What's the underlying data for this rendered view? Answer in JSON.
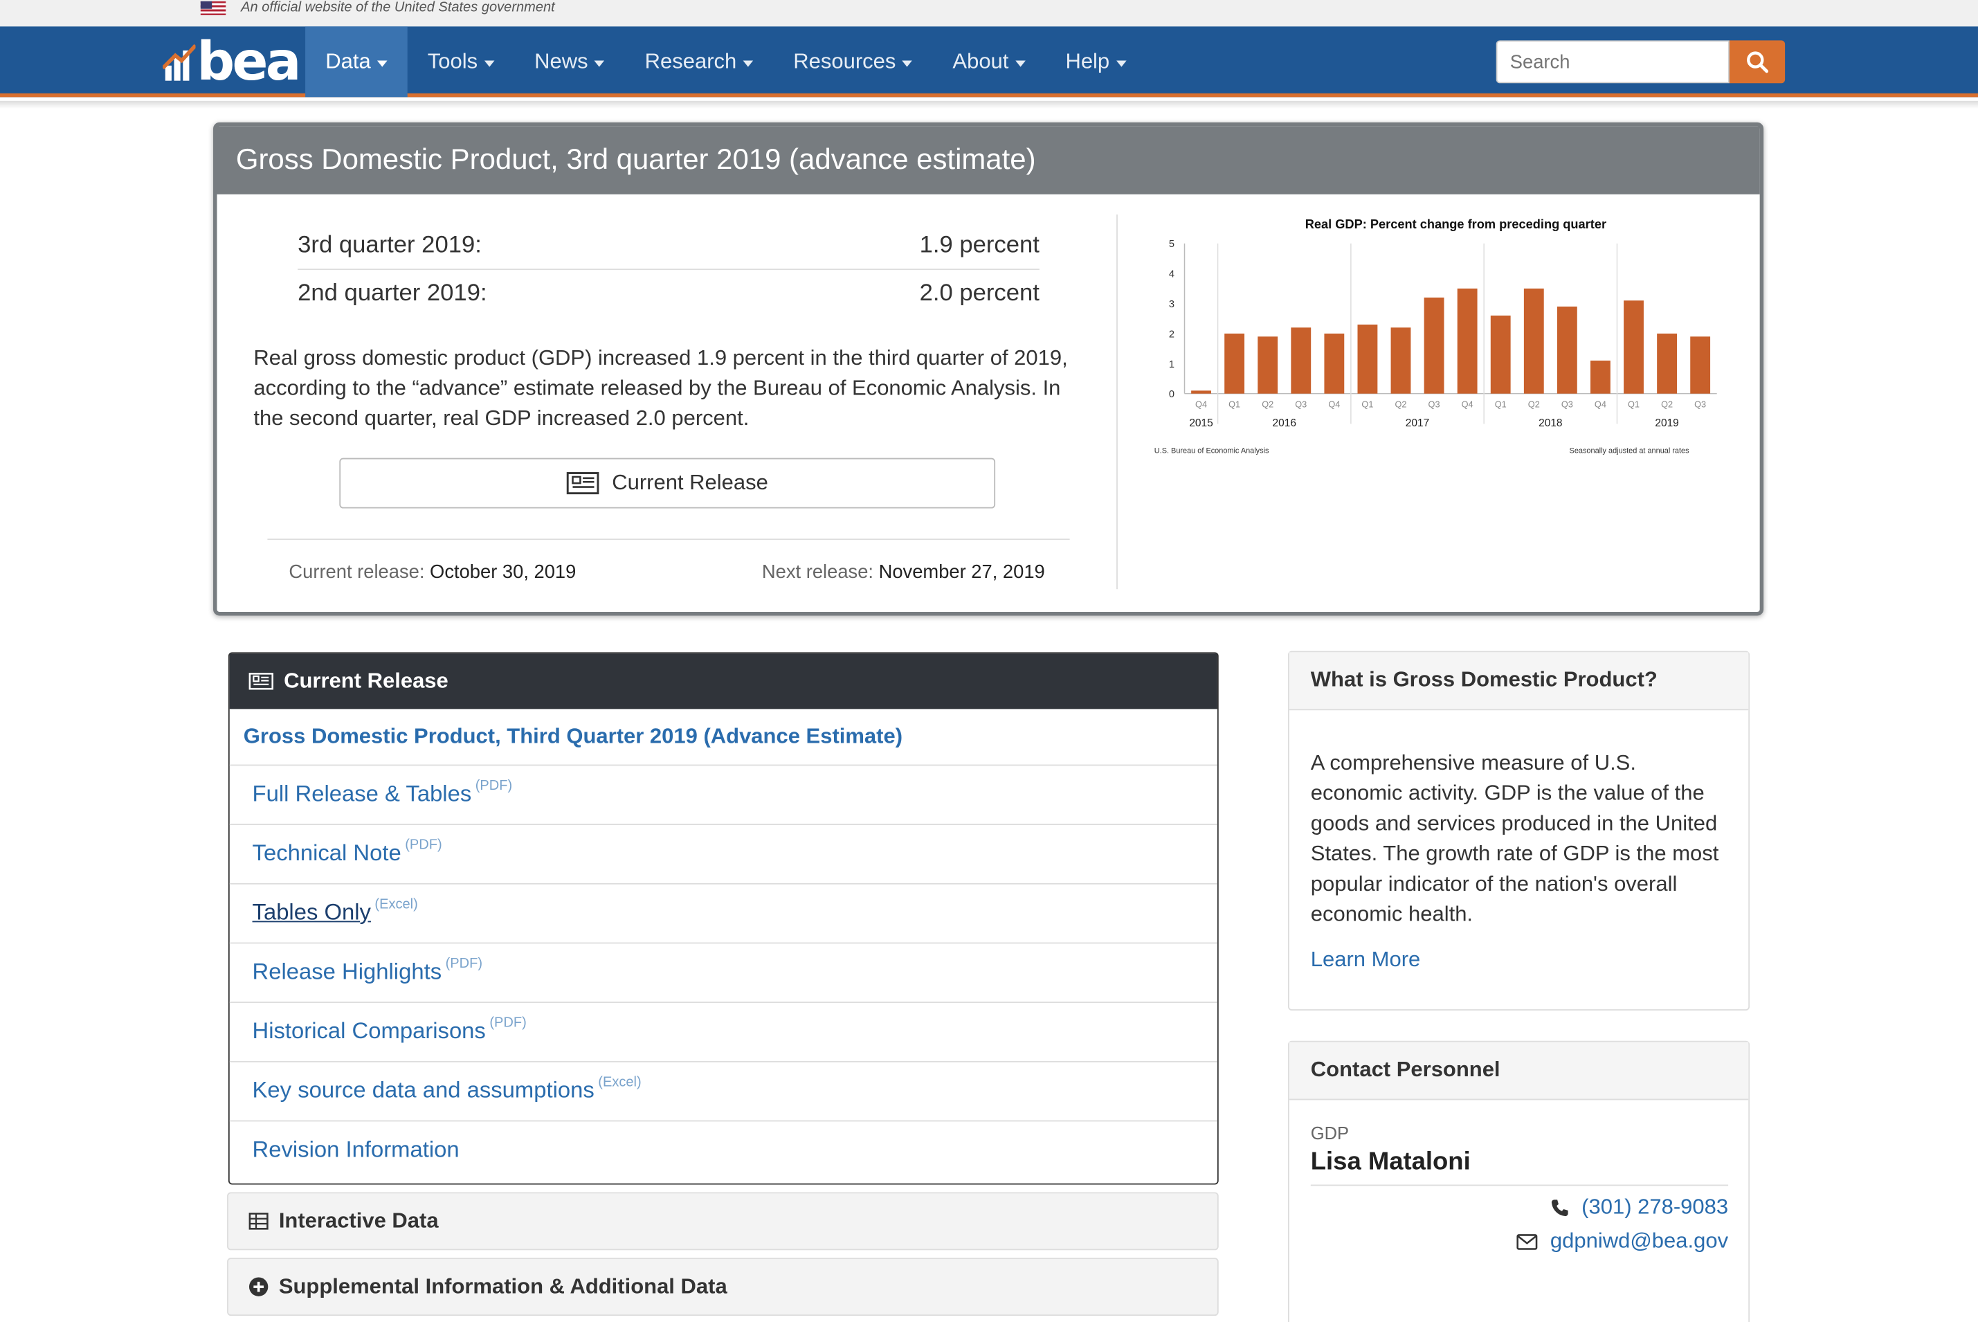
{
  "gov_banner": {
    "text": "An official website of the United States government"
  },
  "nav": {
    "logo_text": "bea",
    "items": [
      "Data",
      "Tools",
      "News",
      "Research",
      "Resources",
      "About",
      "Help"
    ],
    "search_placeholder": "Search"
  },
  "hero": {
    "title": "Gross Domestic Product, 3rd quarter 2019 (advance estimate)",
    "stats": [
      {
        "label": "3rd quarter 2019:",
        "value": "1.9 percent"
      },
      {
        "label": "2nd quarter 2019:",
        "value": "2.0 percent"
      }
    ],
    "description": "Real gross domestic product (GDP) increased 1.9 percent in the third quarter of 2019, according to the “advance” estimate released by the Bureau of Economic Analysis. In the second quarter, real GDP increased 2.0 percent.",
    "button_label": "Current Release",
    "current_release_label": "Current release:",
    "current_release_date": "October 30, 2019",
    "next_release_label": "Next release:",
    "next_release_date": "November 27, 2019"
  },
  "chart_data": {
    "type": "bar",
    "title": "Real GDP:  Percent change from preceding quarter",
    "categories": [
      "Q4",
      "Q1",
      "Q2",
      "Q3",
      "Q4",
      "Q1",
      "Q2",
      "Q3",
      "Q4",
      "Q1",
      "Q2",
      "Q3",
      "Q4",
      "Q1",
      "Q2",
      "Q3"
    ],
    "year_labels": [
      "2015",
      "2016",
      "2017",
      "2018",
      "2019"
    ],
    "values": [
      0.1,
      2.0,
      1.9,
      2.2,
      2.0,
      2.3,
      2.2,
      3.2,
      3.5,
      2.6,
      3.5,
      2.9,
      1.1,
      3.1,
      2.0,
      1.9
    ],
    "ylim": [
      0,
      5
    ],
    "yticks": [
      "0",
      "1",
      "2",
      "3",
      "4",
      "5"
    ],
    "bar_color": "#c8602b",
    "source_note": "U.S. Bureau of Economic Analysis",
    "adjust_note": "Seasonally adjusted at annual rates",
    "grid": "vertical separators between years"
  },
  "current_release": {
    "heading": "Current Release",
    "title": "Gross Domestic Product, Third Quarter 2019 (Advance Estimate)",
    "links": [
      {
        "label": "Full Release & Tables",
        "tag": "(PDF)"
      },
      {
        "label": "Technical Note",
        "tag": "(PDF)"
      },
      {
        "label": "Tables Only",
        "tag": "(Excel)"
      },
      {
        "label": "Release Highlights",
        "tag": "(PDF)"
      },
      {
        "label": "Historical Comparisons",
        "tag": "(PDF)"
      },
      {
        "label": "Key source data and assumptions",
        "tag": "(Excel)"
      },
      {
        "label": "Revision Information",
        "tag": ""
      }
    ]
  },
  "accordions": [
    "Interactive Data",
    "Supplemental Information & Additional Data"
  ],
  "what_is": {
    "heading": "What is Gross Domestic Product?",
    "body": "A comprehensive measure of U.S. economic activity. GDP is the value of the goods and services produced in the United States. The growth rate of GDP is the most popular indicator of the nation's overall economic health.",
    "link": "Learn More"
  },
  "contact": {
    "heading": "Contact Personnel",
    "label": "GDP",
    "name": "Lisa Mataloni",
    "phone": "(301) 278-9083",
    "email": "gdpniwd@bea.gov"
  },
  "colors": {
    "nav_bg": "#1f5794",
    "accent": "#d9702f",
    "link": "#2a6cad",
    "hero_head": "#777c80"
  }
}
